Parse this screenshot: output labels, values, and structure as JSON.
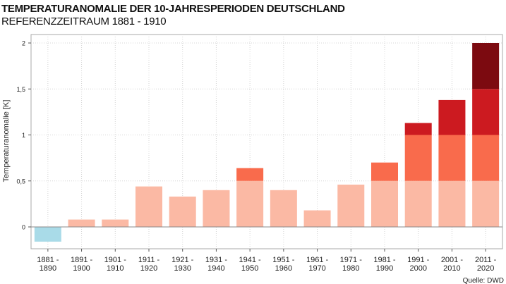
{
  "chart_data": {
    "type": "bar",
    "title": "TEMPERATURANOMALIE DER 10-JAHRESPERIODEN DEUTSCHLAND",
    "subtitle": "REFERENZZEITRAUM 1881 - 1910",
    "xlabel": "",
    "ylabel": "Temperaturanomalie [K]",
    "ylim": [
      -0.2,
      2.1
    ],
    "yticks": [
      0,
      0.5,
      1,
      1.5,
      2
    ],
    "ytick_labels": [
      "0",
      "0,5",
      "1",
      "1,5",
      "2"
    ],
    "grid": true,
    "source": "Quelle: DWD",
    "categories": [
      [
        "1881 -",
        "1890"
      ],
      [
        "1891 -",
        "1900"
      ],
      [
        "1901 -",
        "1910"
      ],
      [
        "1911 -",
        "1920"
      ],
      [
        "1921 -",
        "1930"
      ],
      [
        "1931 -",
        "1940"
      ],
      [
        "1941 -",
        "1950"
      ],
      [
        "1951 -",
        "1960"
      ],
      [
        "1961 -",
        "1970"
      ],
      [
        "1971 -",
        "1980"
      ],
      [
        "1981 -",
        "1990"
      ],
      [
        "1991 -",
        "2000"
      ],
      [
        "2001 -",
        "2010"
      ],
      [
        "2011 -",
        "2020"
      ]
    ],
    "values": [
      -0.16,
      0.08,
      0.08,
      0.44,
      0.33,
      0.4,
      0.64,
      0.4,
      0.18,
      0.46,
      0.7,
      1.13,
      1.38,
      2.0
    ],
    "band_step": 0.5,
    "colors": {
      "negative": "#a9dbe8",
      "bands": [
        "#fbb9a4",
        "#f96b4c",
        "#cc1a20",
        "#7c0a10"
      ],
      "zero_line": "#888888",
      "grid": "#d4d4d4",
      "frame": "#aaaaaa"
    }
  }
}
